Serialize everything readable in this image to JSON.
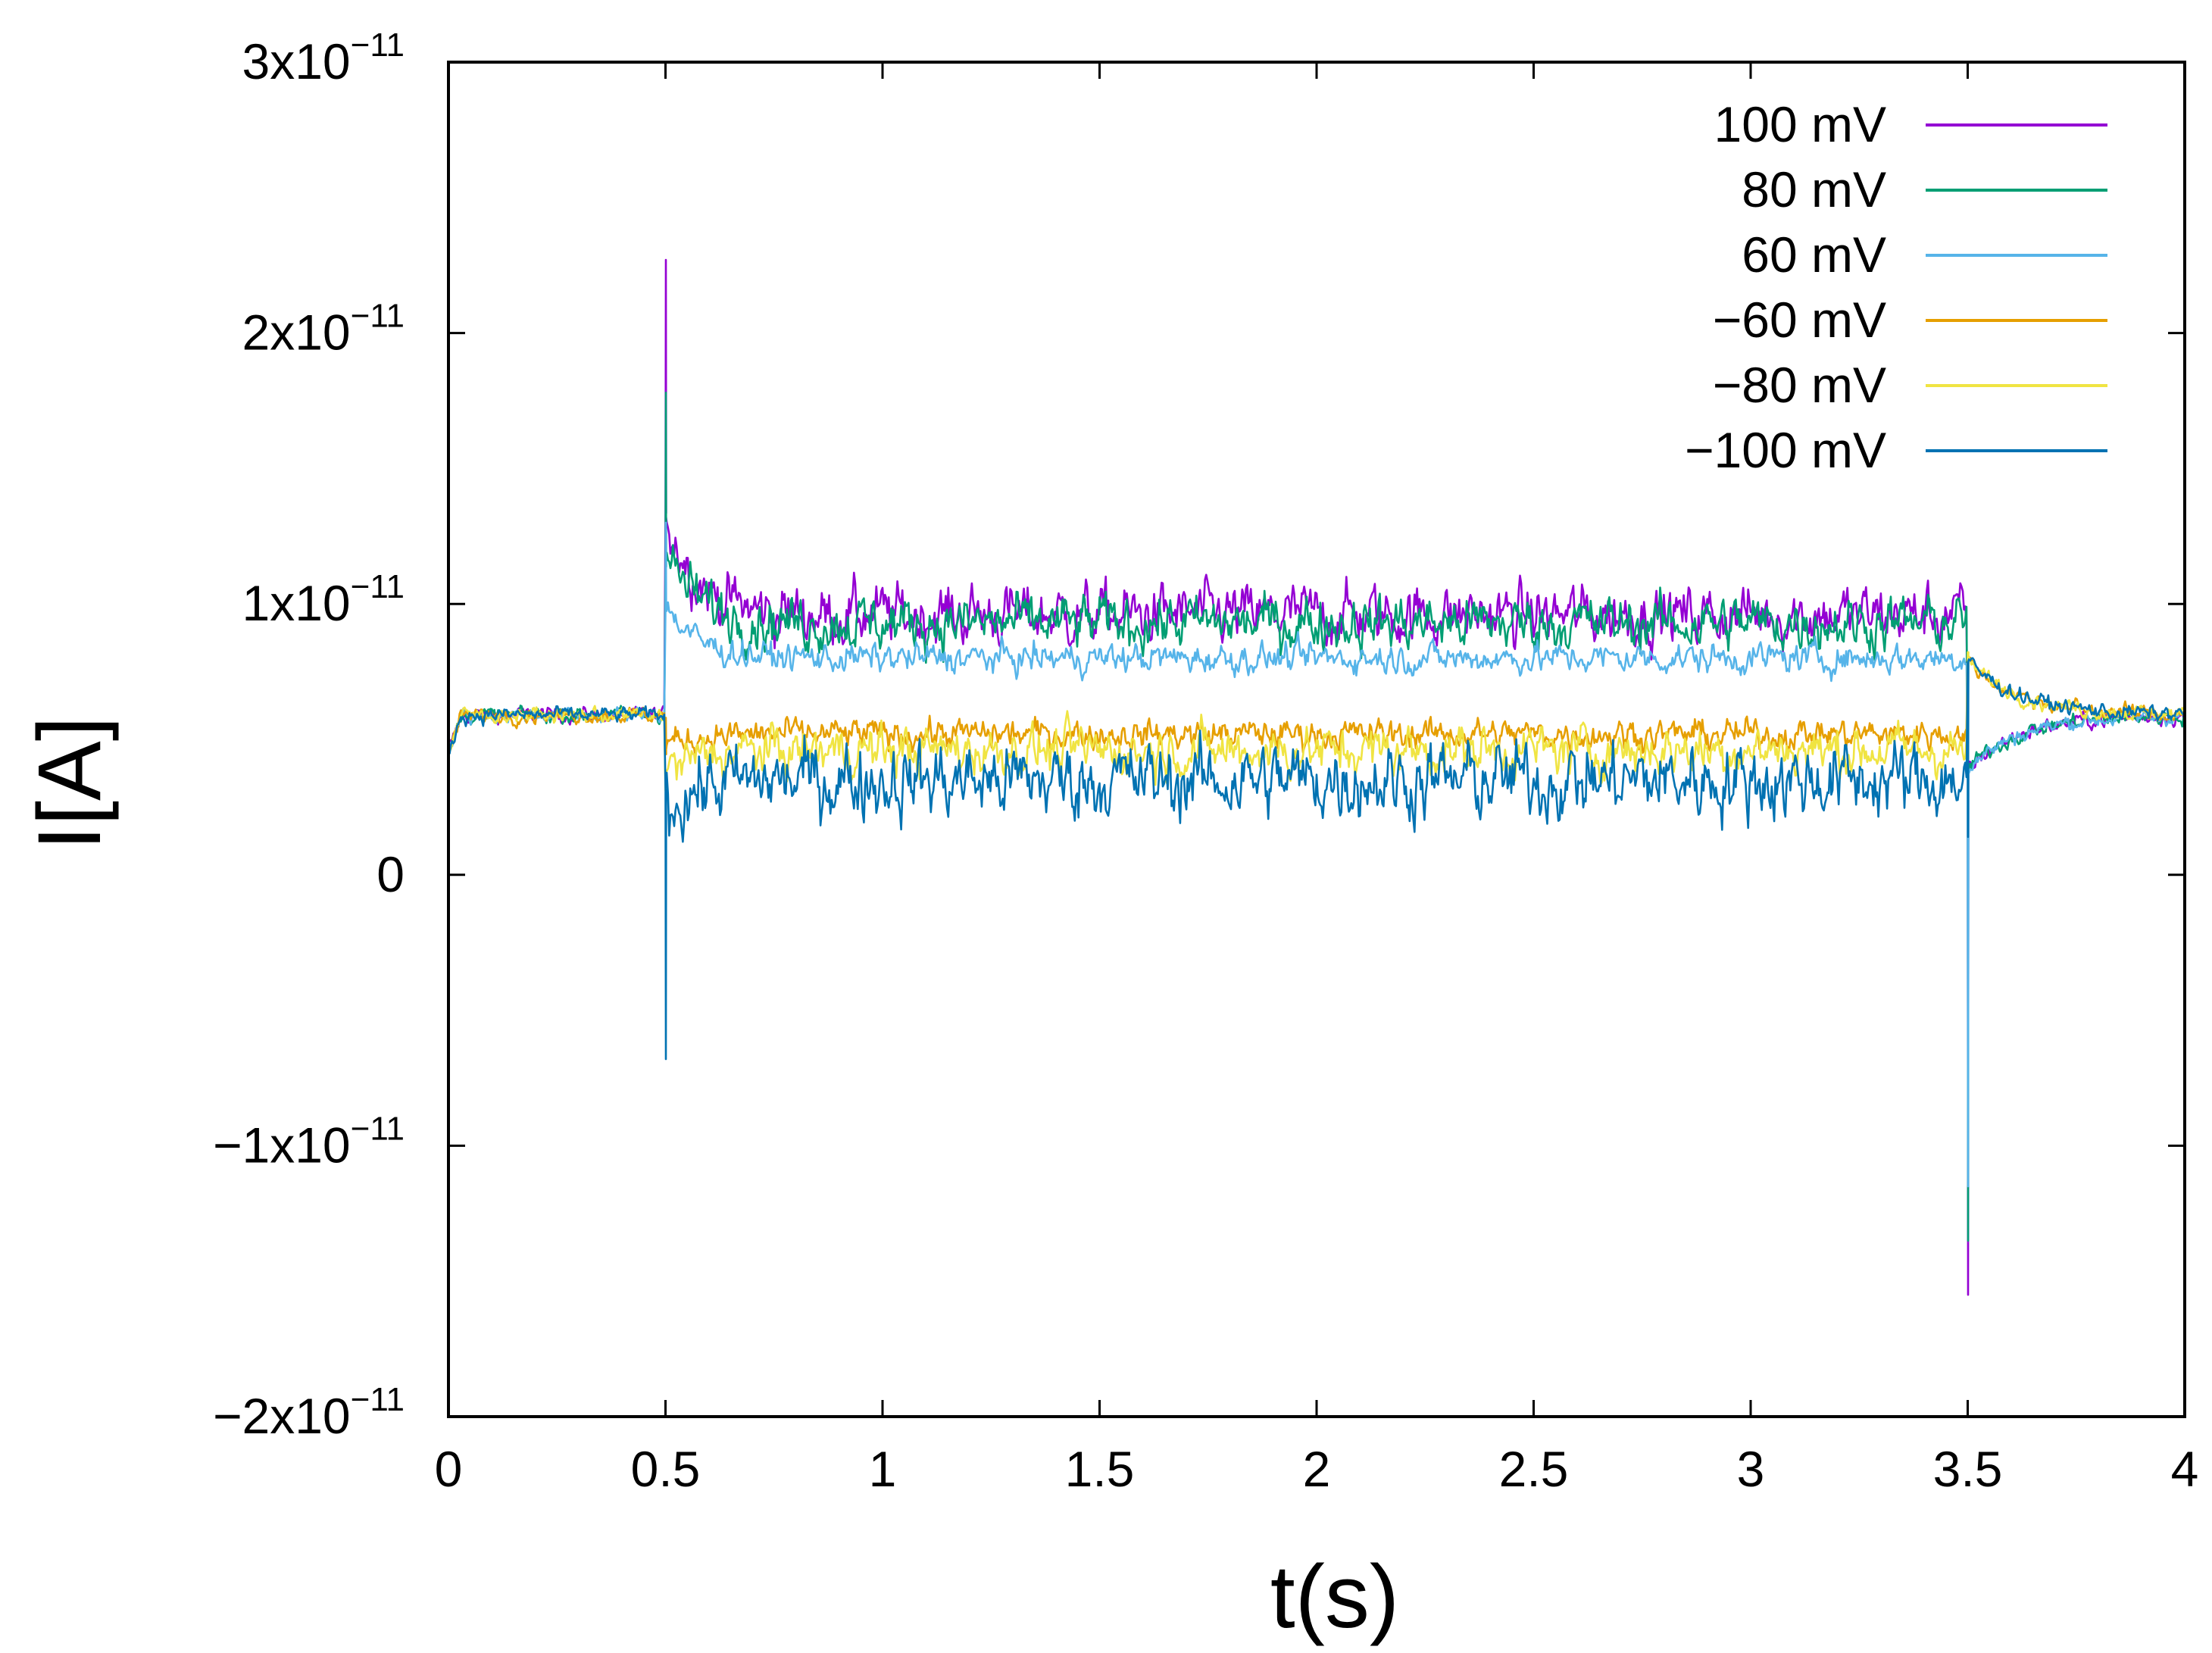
{
  "chart_data": {
    "type": "line",
    "title": "",
    "xlabel": "t(s)",
    "ylabel": "I[A]",
    "xlim": [
      0,
      4
    ],
    "ylim": [
      -2e-11,
      3e-11
    ],
    "grid": false,
    "legend_position": "top-right",
    "x_ticks": [
      {
        "value": 0,
        "label": "0"
      },
      {
        "value": 0.5,
        "label": "0.5"
      },
      {
        "value": 1,
        "label": "1"
      },
      {
        "value": 1.5,
        "label": "1.5"
      },
      {
        "value": 2,
        "label": "2"
      },
      {
        "value": 2.5,
        "label": "2.5"
      },
      {
        "value": 3,
        "label": "3"
      },
      {
        "value": 3.5,
        "label": "3.5"
      },
      {
        "value": 4,
        "label": "4"
      }
    ],
    "y_ticks": [
      {
        "value": 3e-11,
        "label": "3x10",
        "exp": "−11"
      },
      {
        "value": 2e-11,
        "label": "2x10",
        "exp": "−11"
      },
      {
        "value": 1e-11,
        "label": "1x10",
        "exp": "−11"
      },
      {
        "value": 0,
        "label": "0",
        "exp": ""
      },
      {
        "value": -1e-11,
        "label": "−1x10",
        "exp": "−11"
      },
      {
        "value": -2e-11,
        "label": "−2x10",
        "exp": "−11"
      }
    ],
    "voltage_step": {
      "on": 0.5,
      "off": 3.5,
      "baseline": 5.9e-12
    },
    "series": [
      {
        "name": "100 mV",
        "color": "#9400d3",
        "level": 9.6e-12,
        "noise": 1.1e-12,
        "spike_on": 2.27e-11,
        "spike_off": -1.55e-11,
        "tail_peak": 1.35e-11
      },
      {
        "name": "80 mV",
        "color": "#009e73",
        "level": 9.3e-12,
        "noise": 1e-12,
        "spike_on": 1.78e-11,
        "spike_off": -1.35e-11,
        "tail_peak": 1.2e-11
      },
      {
        "name": "60 mV",
        "color": "#56b4e9",
        "level": 8e-12,
        "noise": 5.5e-13,
        "spike_on": 1.3e-11,
        "spike_off": -1.15e-11,
        "tail_peak": 1e-11
      },
      {
        "name": "−60 mV",
        "color": "#e69f00",
        "level": 5.2e-12,
        "noise": 5.5e-13,
        "spike_on": 5.8e-12,
        "spike_off": 5.8e-12,
        "tail_peak": 4.8e-12
      },
      {
        "name": "−80 mV",
        "color": "#f0e442",
        "level": 4.6e-12,
        "noise": 9e-13,
        "spike_on": 3.5e-12,
        "spike_off": 7e-12,
        "tail_peak": 3.8e-12
      },
      {
        "name": "−100 mV",
        "color": "#0072b2",
        "level": 3.5e-12,
        "noise": 1.4e-12,
        "spike_on": -6.8e-12,
        "spike_off": 1.4e-12,
        "tail_peak": 2.5e-12
      }
    ]
  }
}
